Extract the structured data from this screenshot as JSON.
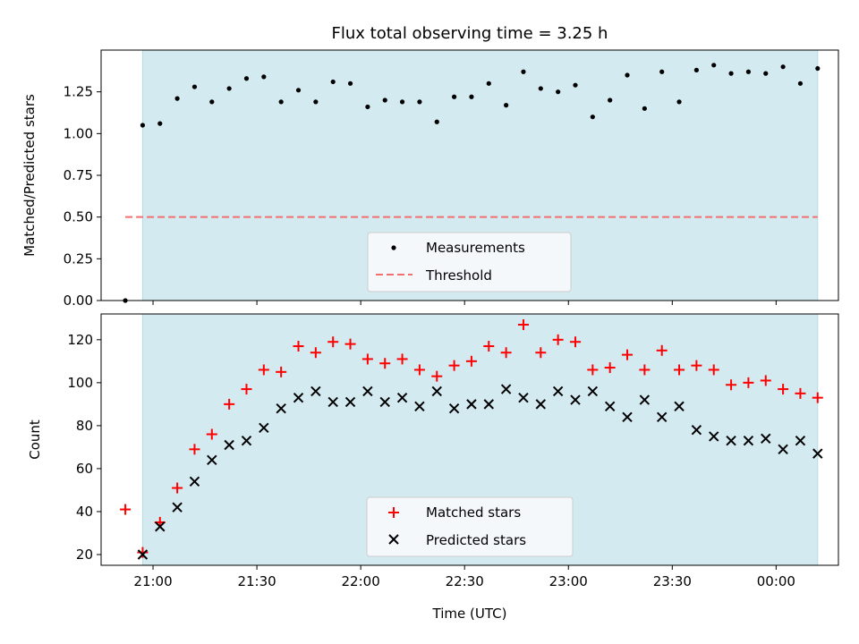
{
  "colors": {
    "shade": "#d4eaf1",
    "shade_edge": "#b5dce6",
    "measurements": "#000000",
    "threshold": "#f07070",
    "matched": "#ff0000",
    "predicted": "#000000",
    "legend_bg": "#f4f8fb"
  },
  "chart_data": [
    {
      "type": "scatter",
      "title": "Flux total observing time = 3.25 h",
      "xlabel": "",
      "ylabel": "Matched/Predicted stars",
      "ylim": [
        0,
        1.5
      ],
      "y_ticks": [
        "0.00",
        "0.25",
        "0.50",
        "0.75",
        "1.00",
        "1.25"
      ],
      "y_tick_values": [
        0,
        0.25,
        0.5,
        0.75,
        1.0,
        1.25
      ],
      "x_ticks_labeled": false,
      "shaded_x_range": [
        "20:57",
        "00:12"
      ],
      "legend": {
        "placement": "lower-center",
        "entries": [
          "Measurements",
          "Threshold"
        ]
      },
      "series": [
        {
          "name": "Measurements",
          "marker": "dot",
          "x": [
            "20:52",
            "20:57",
            "21:02",
            "21:07",
            "21:12",
            "21:17",
            "21:22",
            "21:27",
            "21:32",
            "21:37",
            "21:42",
            "21:47",
            "21:52",
            "21:57",
            "22:02",
            "22:07",
            "22:12",
            "22:17",
            "22:22",
            "22:27",
            "22:32",
            "22:37",
            "22:42",
            "22:47",
            "22:52",
            "22:57",
            "23:02",
            "23:07",
            "23:12",
            "23:17",
            "23:22",
            "23:27",
            "23:32",
            "23:37",
            "23:42",
            "23:47",
            "23:52",
            "23:57",
            "00:02",
            "00:07",
            "00:12"
          ],
          "y": [
            0.0,
            1.05,
            1.06,
            1.21,
            1.28,
            1.19,
            1.27,
            1.33,
            1.34,
            1.19,
            1.26,
            1.19,
            1.31,
            1.3,
            1.16,
            1.2,
            1.19,
            1.19,
            1.07,
            1.22,
            1.22,
            1.3,
            1.17,
            1.37,
            1.27,
            1.25,
            1.29,
            1.1,
            1.2,
            1.35,
            1.15,
            1.37,
            1.19,
            1.38,
            1.41,
            1.36,
            1.37,
            1.36,
            1.4,
            1.3,
            1.39
          ]
        },
        {
          "name": "Threshold",
          "type": "line",
          "style": "dashed",
          "x": [
            "20:52",
            "00:12"
          ],
          "y": [
            0.5,
            0.5
          ]
        }
      ]
    },
    {
      "type": "scatter",
      "title": "",
      "xlabel": "Time (UTC)",
      "ylabel": "Count",
      "ylim": [
        15,
        132
      ],
      "y_ticks": [
        "20",
        "40",
        "60",
        "80",
        "100",
        "120"
      ],
      "y_tick_values": [
        20,
        40,
        60,
        80,
        100,
        120
      ],
      "x_ticks": [
        "21:00",
        "21:30",
        "22:00",
        "22:30",
        "23:00",
        "23:30",
        "00:00"
      ],
      "shaded_x_range": [
        "20:57",
        "00:12"
      ],
      "legend": {
        "placement": "lower-center",
        "entries": [
          "Matched stars",
          "Predicted stars"
        ]
      },
      "series": [
        {
          "name": "Matched stars",
          "marker": "plus",
          "x": [
            "20:52",
            "20:57",
            "21:02",
            "21:07",
            "21:12",
            "21:17",
            "21:22",
            "21:27",
            "21:32",
            "21:37",
            "21:42",
            "21:47",
            "21:52",
            "21:57",
            "22:02",
            "22:07",
            "22:12",
            "22:17",
            "22:22",
            "22:27",
            "22:32",
            "22:37",
            "22:42",
            "22:47",
            "22:52",
            "22:57",
            "23:02",
            "23:07",
            "23:12",
            "23:17",
            "23:22",
            "23:27",
            "23:32",
            "23:37",
            "23:42",
            "23:47",
            "23:52",
            "23:57",
            "00:02",
            "00:07",
            "00:12"
          ],
          "y": [
            41,
            21,
            35,
            51,
            69,
            76,
            90,
            97,
            106,
            105,
            117,
            114,
            119,
            118,
            111,
            109,
            111,
            106,
            103,
            108,
            110,
            117,
            114,
            127,
            114,
            120,
            119,
            106,
            107,
            113,
            106,
            115,
            106,
            108,
            106,
            99,
            100,
            101,
            97,
            95,
            93
          ]
        },
        {
          "name": "Predicted stars",
          "marker": "x",
          "x": [
            "20:57",
            "21:02",
            "21:07",
            "21:12",
            "21:17",
            "21:22",
            "21:27",
            "21:32",
            "21:37",
            "21:42",
            "21:47",
            "21:52",
            "21:57",
            "22:02",
            "22:07",
            "22:12",
            "22:17",
            "22:22",
            "22:27",
            "22:32",
            "22:37",
            "22:42",
            "22:47",
            "22:52",
            "22:57",
            "23:02",
            "23:07",
            "23:12",
            "23:17",
            "23:22",
            "23:27",
            "23:32",
            "23:37",
            "23:42",
            "23:47",
            "23:52",
            "23:57",
            "00:02",
            "00:07",
            "00:12"
          ],
          "y": [
            20,
            33,
            42,
            54,
            64,
            71,
            73,
            79,
            88,
            93,
            96,
            91,
            91,
            96,
            91,
            93,
            89,
            96,
            88,
            90,
            90,
            97,
            93,
            90,
            96,
            92,
            96,
            89,
            84,
            92,
            84,
            89,
            78,
            75,
            73,
            73,
            74,
            69,
            73,
            67
          ]
        }
      ]
    }
  ]
}
